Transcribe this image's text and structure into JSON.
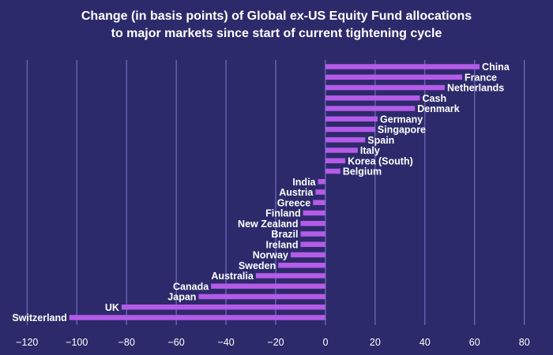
{
  "chart_data": {
    "type": "bar",
    "orientation": "horizontal",
    "title": [
      "Change (in basis points) of Global ex-US Equity Fund allocations",
      "to major markets since start of current tightening cycle"
    ],
    "xlabel": "",
    "ylabel": "",
    "xlim": [
      -122,
      82
    ],
    "xticks": [
      -120,
      -100,
      -80,
      -60,
      -40,
      -20,
      0,
      20,
      40,
      60,
      80
    ],
    "grid": "vertical",
    "categories": [
      "China",
      "France",
      "Netherlands",
      "Cash",
      "Denmark",
      "Germany",
      "Singapore",
      "Spain",
      "Italy",
      "Korea (South)",
      "Belgium",
      "India",
      "Austria",
      "Greece",
      "Finland",
      "New Zealand",
      "Brazil",
      "Ireland",
      "Norway",
      "Sweden",
      "Australia",
      "Canada",
      "Japan",
      "UK",
      "Switzerland"
    ],
    "values": [
      62,
      55,
      48,
      38,
      36,
      21,
      20,
      16,
      13,
      8,
      6,
      -3,
      -4,
      -5,
      -9,
      -10,
      -10,
      -10,
      -14,
      -19,
      -28,
      -46,
      -51,
      -82,
      -103
    ],
    "bar_color": "#b45be8",
    "grid_color": "#7e7bd0",
    "text_color": "#ffffff",
    "background": "#2d2a6b"
  }
}
